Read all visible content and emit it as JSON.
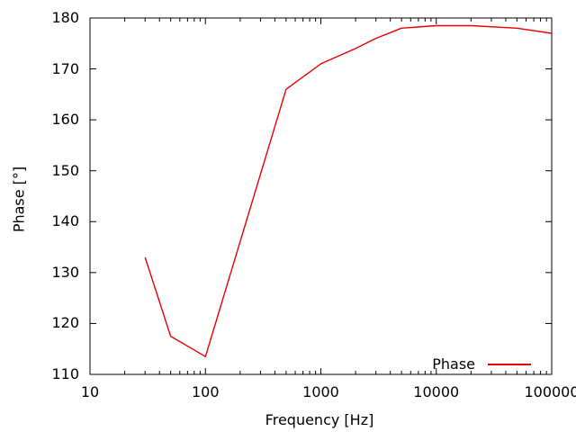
{
  "figure": {
    "background": "#ffffff",
    "border_color": "#000000"
  },
  "chart_data": {
    "type": "line",
    "title": "",
    "xlabel": "Frequency [Hz]",
    "ylabel": "Phase [°]",
    "x_scale": "log",
    "xlim": [
      10,
      100000
    ],
    "ylim": [
      110,
      180
    ],
    "x_ticks": [
      10,
      100,
      1000,
      10000,
      100000
    ],
    "x_tick_labels": [
      "10",
      "100",
      "1000",
      "10000",
      "100000"
    ],
    "y_ticks": [
      110,
      120,
      130,
      140,
      150,
      160,
      170,
      180
    ],
    "grid": false,
    "legend_position": "bottom-right-inside",
    "series": [
      {
        "name": "Phase",
        "color": "#e60000",
        "x": [
          30,
          50,
          100,
          500,
          1000,
          2000,
          3000,
          5000,
          10000,
          20000,
          50000,
          100000
        ],
        "y": [
          133,
          117.5,
          113.5,
          166,
          171,
          174,
          176,
          178,
          178.5,
          178.5,
          178,
          177
        ]
      }
    ]
  }
}
